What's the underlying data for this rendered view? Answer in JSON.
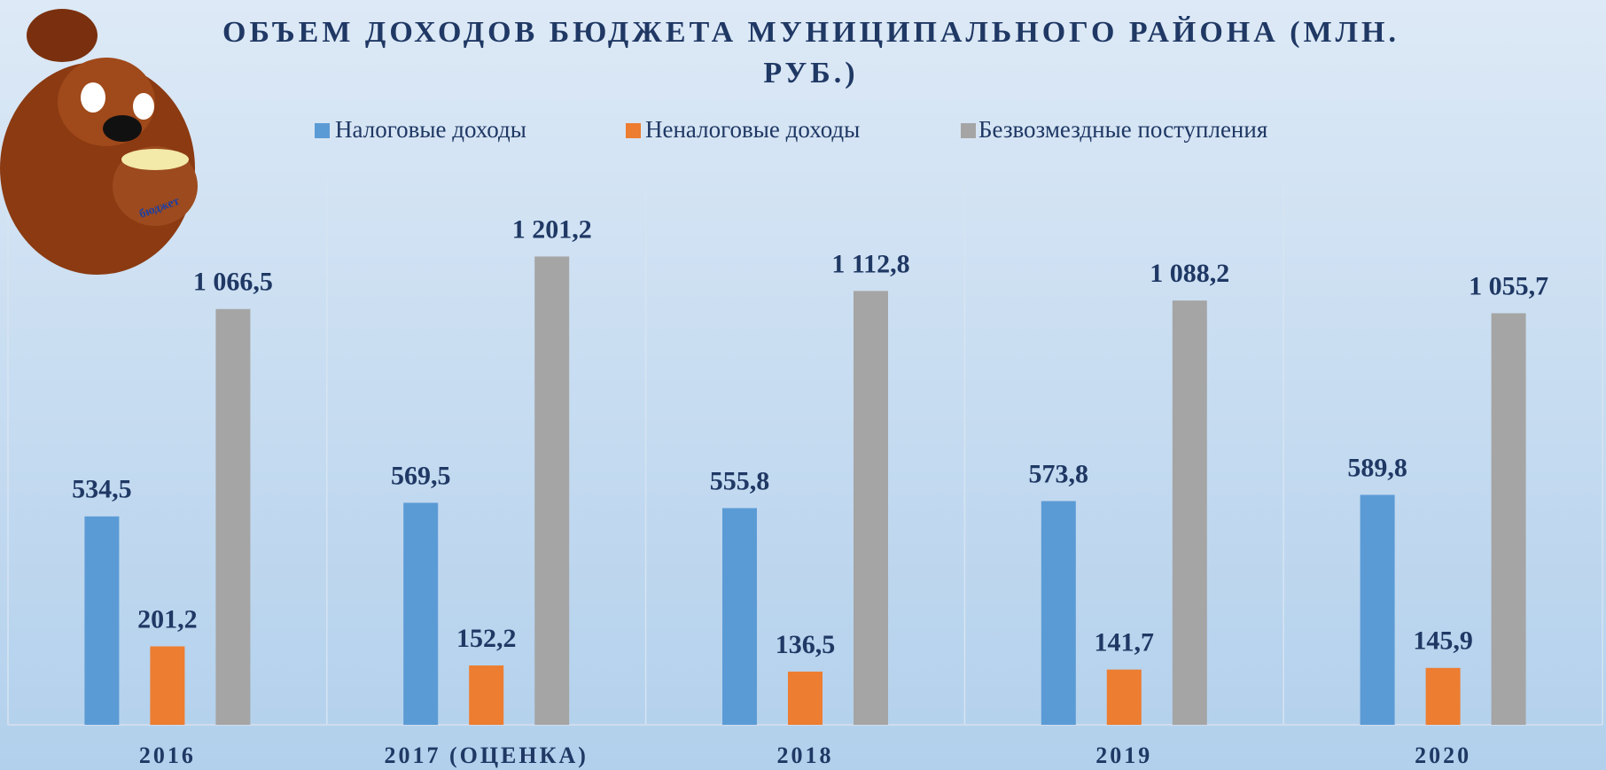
{
  "chart_data": {
    "type": "bar",
    "title": "ОБЪЕМ ДОХОДОВ БЮДЖЕТА МУНИЦИПАЛЬНОГО РАЙОНА (МЛН. РУБ.)",
    "categories": [
      "2016",
      "2017 (ОЦЕНКА)",
      "2018",
      "2019",
      "2020"
    ],
    "series": [
      {
        "name": "Налоговые доходы",
        "color": "#5b9bd5",
        "values": [
          534.5,
          569.5,
          555.8,
          573.8,
          589.8
        ],
        "value_labels": [
          "534,5",
          "569,5",
          "555,8",
          "573,8",
          "589,8"
        ]
      },
      {
        "name": "Неналоговые доходы",
        "color": "#ed7d31",
        "values": [
          201.2,
          152.2,
          136.5,
          141.7,
          145.9
        ],
        "value_labels": [
          "201,2",
          "152,2",
          "136,5",
          "141,7",
          "145,9"
        ]
      },
      {
        "name": "Безвозмездные поступления",
        "color": "#a5a5a5",
        "values": [
          1066.5,
          1201.2,
          1112.8,
          1088.2,
          1055.7
        ],
        "value_labels": [
          "1 066,5",
          "1 201,2",
          "1 112,8",
          "1 088,2",
          "1 055,7"
        ]
      }
    ],
    "ylim": [
      0,
      1400
    ],
    "legend": "top",
    "illustration_label": "бюджет"
  }
}
